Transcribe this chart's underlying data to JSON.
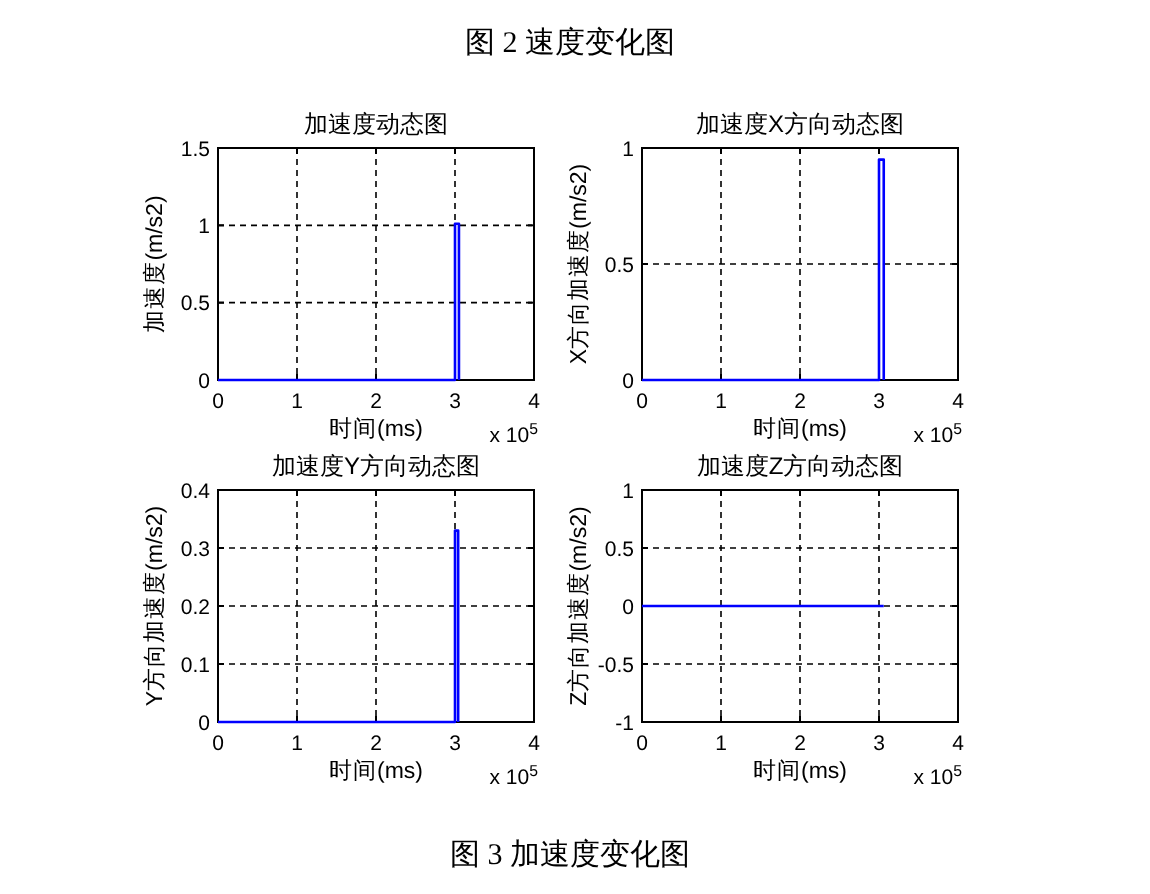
{
  "chart_data": [
    {
      "type": "line",
      "title": "加速度动态图",
      "xlabel": "时间(ms)",
      "ylabel": "加速度(m/s2)",
      "x": [
        0,
        3,
        3,
        3.05,
        3.05
      ],
      "values": [
        0,
        0,
        1.01,
        1.01,
        0
      ],
      "color": "#0000ff",
      "xlim": [
        0,
        4
      ],
      "xticks": [
        0,
        1,
        2,
        3,
        4
      ],
      "ylim": [
        0,
        1.5
      ],
      "yticks": [
        0,
        0.5,
        1,
        1.5
      ],
      "grid": true,
      "annotations": [
        "x 10$^{5}$",
        "图 2 速度变化图"
      ]
    },
    {
      "type": "line",
      "title": "加速度X方向动态图",
      "xlabel": "时间(ms)",
      "ylabel": "X方向加速度(m/s2)",
      "x": [
        0,
        3,
        3,
        3.06,
        3.06
      ],
      "values": [
        0,
        0,
        0.95,
        0.95,
        0
      ],
      "color": "#0000ff",
      "xlim": [
        0,
        4
      ],
      "xticks": [
        0,
        1,
        2,
        3,
        4
      ],
      "ylim": [
        0,
        1
      ],
      "yticks": [
        0,
        0.5,
        1
      ],
      "grid": true,
      "annotations": [
        "x 10$^{5}$"
      ]
    },
    {
      "type": "line",
      "title": "加速度Y方向动态图",
      "xlabel": "时间(ms)",
      "ylabel": "Y方向加速度(m/s2)",
      "x": [
        0,
        3,
        3,
        3.04,
        3.04
      ],
      "values": [
        0,
        0,
        0.33,
        0.33,
        0
      ],
      "color": "#0000ff",
      "xlim": [
        0,
        4
      ],
      "xticks": [
        0,
        1,
        2,
        3,
        4
      ],
      "ylim": [
        0,
        0.4
      ],
      "yticks": [
        0,
        0.1,
        0.2,
        0.3,
        0.4
      ],
      "grid": true,
      "annotations": [
        "x 10$^{5}$"
      ]
    },
    {
      "type": "line",
      "title": "加速度Z方向动态图",
      "xlabel": "时间(ms)",
      "ylabel": "Z方向加速度(m/s2)",
      "x": [
        0,
        3.06
      ],
      "values": [
        0,
        0
      ],
      "color": "#0000ff",
      "xlim": [
        0,
        4
      ],
      "xticks": [
        0,
        1,
        2,
        3,
        4
      ],
      "ylim": [
        -1,
        1
      ],
      "yticks": [
        -1,
        -0.5,
        0,
        0.5,
        1
      ],
      "grid": true,
      "annotations": [
        "x 10$^{5}$",
        "图 3 加速度变化图"
      ]
    }
  ]
}
